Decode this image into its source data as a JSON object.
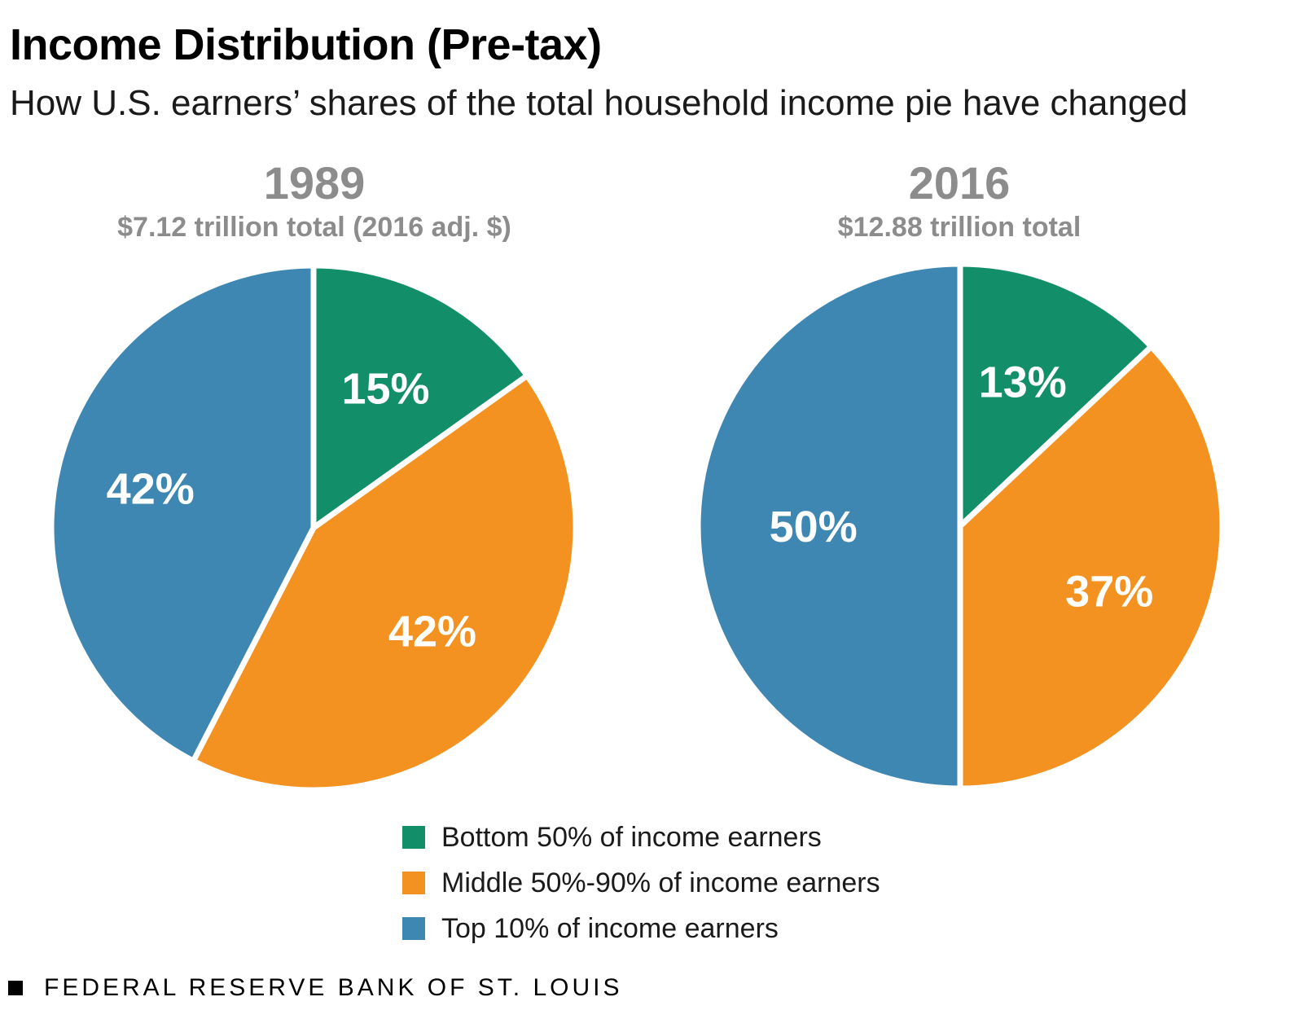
{
  "title": "Income Distribution (Pre-tax)",
  "subtitle": "How U.S. earners’ shares of the total household income pie have changed",
  "footer": "FEDERAL RESERVE BANK OF ST. LOUIS",
  "colors": {
    "bottom": "#128f68",
    "middle": "#f39220",
    "top": "#3f87b3"
  },
  "chart_data": [
    {
      "type": "pie",
      "title": "1989",
      "subtitle": "$7.12 trillion total (2016 adj. $)",
      "slices": [
        {
          "legend_key": 0,
          "value": 15,
          "label": "15%"
        },
        {
          "legend_key": 1,
          "value": 42,
          "label": "42%"
        },
        {
          "legend_key": 2,
          "value": 42,
          "label": "42%"
        }
      ]
    },
    {
      "type": "pie",
      "title": "2016",
      "subtitle": "$12.88 trillion total",
      "slices": [
        {
          "legend_key": 0,
          "value": 13,
          "label": "13%"
        },
        {
          "legend_key": 1,
          "value": 37,
          "label": "37%"
        },
        {
          "legend_key": 2,
          "value": 50,
          "label": "50%"
        }
      ]
    }
  ],
  "legend": [
    {
      "label": "Bottom 50% of income earners",
      "color": "#128f68"
    },
    {
      "label": "Middle 50%-90% of income earners",
      "color": "#f39220"
    },
    {
      "label": "Top 10% of income earners",
      "color": "#3f87b3"
    }
  ]
}
